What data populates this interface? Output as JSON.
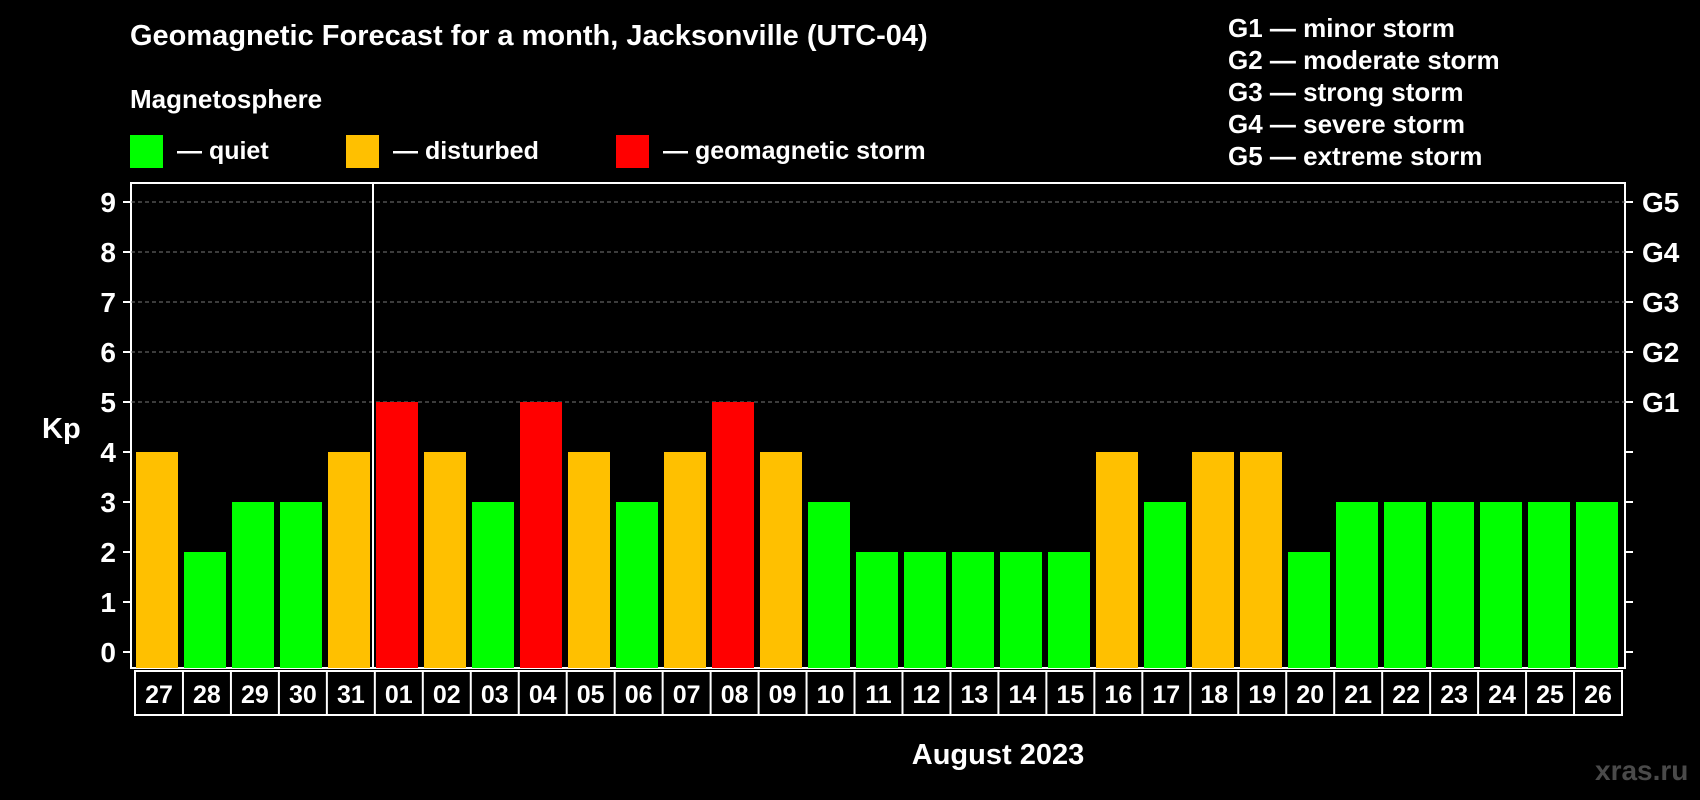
{
  "chart_data": {
    "type": "bar",
    "title": "Geomagnetic Forecast for a month, Jacksonville (UTC-04)",
    "subtitle": "Magnetosphere",
    "ylabel": "Kp",
    "xlabel": "August 2023",
    "ylim": [
      0,
      9
    ],
    "yticks": [
      "0",
      "1",
      "2",
      "3",
      "4",
      "5",
      "6",
      "7",
      "8",
      "9"
    ],
    "right_ticks": [
      {
        "kp": 5,
        "label": "G1"
      },
      {
        "kp": 6,
        "label": "G2"
      },
      {
        "kp": 7,
        "label": "G3"
      },
      {
        "kp": 8,
        "label": "G4"
      },
      {
        "kp": 9,
        "label": "G5"
      }
    ],
    "categories": [
      "27",
      "28",
      "29",
      "30",
      "31",
      "01",
      "02",
      "03",
      "04",
      "05",
      "06",
      "07",
      "08",
      "09",
      "10",
      "11",
      "12",
      "13",
      "14",
      "15",
      "16",
      "17",
      "18",
      "19",
      "20",
      "21",
      "22",
      "23",
      "24",
      "25",
      "26"
    ],
    "values": [
      4,
      2,
      3,
      3,
      4,
      5,
      4,
      3,
      5,
      4,
      3,
      4,
      5,
      4,
      3,
      2,
      2,
      2,
      2,
      2,
      4,
      3,
      4,
      4,
      2,
      3,
      3,
      3,
      3,
      3,
      3
    ],
    "month_divider_after_index": 4,
    "legend": [
      {
        "label": "— quiet",
        "color": "#00ff00"
      },
      {
        "label": "— disturbed",
        "color": "#ffc000"
      },
      {
        "label": "— geomagnetic storm",
        "color": "#ff0000"
      }
    ],
    "storm_legend": [
      "G1 — minor storm",
      "G2 — moderate storm",
      "G3 — strong storm",
      "G4 — severe storm",
      "G5 — extreme storm"
    ]
  },
  "watermark": "xras.ru"
}
